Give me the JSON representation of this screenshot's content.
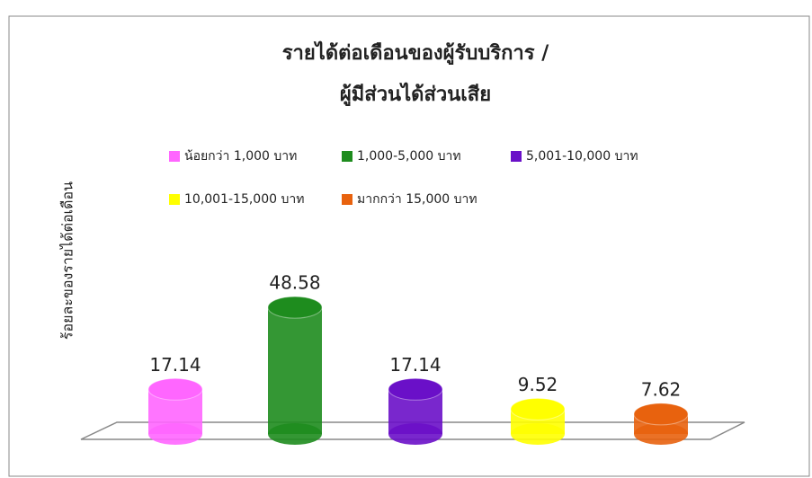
{
  "chart_data": {
    "type": "bar",
    "title_lines": [
      "รายได้ต่อเดือนของผู้รับบริการ /",
      "ผู้มีส่วนได้ส่วนเสีย"
    ],
    "y_label": "ร้อยละของรายได้ต่อเดือน",
    "categories": [
      "น้อยกว่า 1,000 บาท",
      "1,000-5,000 บาท",
      "5,001-10,000 บาท",
      "10,001-15,000 บาท",
      "มากกว่า 15,000 บาท"
    ],
    "values": [
      17.14,
      48.58,
      17.14,
      9.52,
      7.62
    ],
    "colors": [
      "#ff66ff",
      "#1e8c1e",
      "#6a10c8",
      "#ffff00",
      "#e8620e"
    ],
    "legend": "top"
  }
}
